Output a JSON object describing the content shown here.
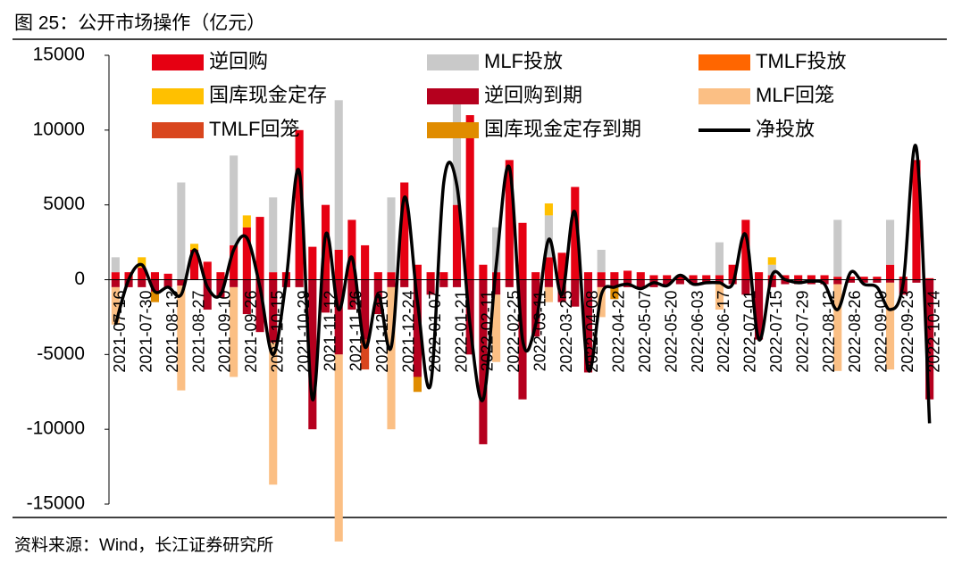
{
  "chart_data": {
    "type": "bar",
    "title": "图 25：公开市场操作（亿元）",
    "source": "资料来源：Wind，长江证券研究所",
    "categories": [
      "2021-07-16",
      null,
      "2021-07-30",
      null,
      "2021-08-13",
      null,
      "2021-08-27",
      null,
      "2021-09-10",
      null,
      "2021-09-26",
      null,
      "2021-10-15",
      null,
      "2021-10-29",
      null,
      "2021-11-12",
      null,
      "2021-11-26",
      null,
      "2021-12-10",
      null,
      "2021-12-24",
      null,
      "2022-01-07",
      null,
      "2022-01-21",
      null,
      "2022-02-11",
      null,
      "2022-02-25",
      null,
      "2022-03-11",
      null,
      "2022-03-25",
      null,
      "2022-04-08",
      null,
      "2022-04-22",
      null,
      "2022-05-07",
      null,
      "2022-05-20",
      null,
      "2022-06-03",
      null,
      "2022-06-17",
      null,
      "2022-07-01",
      null,
      "2022-07-15",
      null,
      "2022-07-29",
      null,
      "2022-08-12",
      null,
      "2022-08-26",
      null,
      "2022-09-09",
      null,
      "2022-09-23",
      null,
      "2022-10-14"
    ],
    "series": [
      {
        "name": "逆回购",
        "color": "#e60012",
        "values": [
          500,
          500,
          800,
          500,
          400,
          0,
          2000,
          1200,
          500,
          2300,
          3500,
          4200,
          500,
          500,
          10000,
          2200,
          5000,
          2000,
          4000,
          2300,
          500,
          500,
          6500,
          1000,
          500,
          500,
          5000,
          11000,
          1000,
          500,
          8000,
          3800,
          500,
          1500,
          1800,
          6200,
          500,
          500,
          500,
          600,
          500,
          300,
          300,
          300,
          300,
          300,
          300,
          1000,
          4000,
          500,
          300,
          300,
          300,
          300,
          300,
          200,
          200,
          200,
          200,
          1000,
          200,
          8000,
          100
        ]
      },
      {
        "name": "MLF投放",
        "color": "#c9c9c9",
        "values": [
          1000,
          0,
          0,
          0,
          0,
          6500,
          0,
          0,
          0,
          6000,
          0,
          0,
          5000,
          0,
          0,
          0,
          0,
          10000,
          0,
          0,
          0,
          5000,
          0,
          0,
          0,
          0,
          7000,
          0,
          0,
          3000,
          0,
          0,
          0,
          2800,
          0,
          0,
          0,
          1500,
          0,
          0,
          0,
          0,
          0,
          0,
          0,
          0,
          2200,
          0,
          0,
          0,
          700,
          0,
          0,
          0,
          0,
          3800,
          0,
          0,
          0,
          3000,
          0,
          0,
          0
        ]
      },
      {
        "name": "TMLF投放",
        "color": "#ff6600",
        "values": [
          0,
          0,
          0,
          0,
          0,
          0,
          0,
          0,
          0,
          0,
          0,
          0,
          0,
          0,
          0,
          0,
          0,
          0,
          0,
          0,
          0,
          0,
          0,
          0,
          0,
          0,
          0,
          0,
          0,
          0,
          0,
          0,
          0,
          0,
          0,
          0,
          0,
          0,
          0,
          0,
          0,
          0,
          0,
          0,
          0,
          0,
          0,
          0,
          0,
          0,
          0,
          0,
          0,
          0,
          0,
          0,
          0,
          0,
          0,
          0,
          0,
          0,
          0
        ]
      },
      {
        "name": "国库现金定存",
        "color": "#ffc000",
        "values": [
          0,
          0,
          700,
          0,
          0,
          0,
          400,
          0,
          0,
          0,
          800,
          0,
          0,
          0,
          0,
          0,
          0,
          0,
          0,
          0,
          0,
          0,
          0,
          0,
          0,
          0,
          0,
          0,
          0,
          0,
          0,
          0,
          0,
          800,
          0,
          0,
          0,
          0,
          0,
          0,
          0,
          0,
          0,
          0,
          0,
          0,
          0,
          0,
          0,
          0,
          500,
          0,
          0,
          0,
          0,
          0,
          0,
          0,
          0,
          0,
          0,
          0,
          0
        ]
      },
      {
        "name": "逆回购到期",
        "color": "#b5001e",
        "values": [
          -500,
          -500,
          -500,
          -800,
          -500,
          -400,
          0,
          -2000,
          -1200,
          -500,
          -2300,
          -3500,
          -4200,
          -500,
          -500,
          -10000,
          -2200,
          -5000,
          -2000,
          -4000,
          -2300,
          -500,
          -500,
          -6500,
          -1000,
          -500,
          -500,
          -5000,
          -11000,
          -1000,
          -500,
          -8000,
          -3800,
          -500,
          -1500,
          -1800,
          -6200,
          -500,
          -500,
          -500,
          -600,
          -500,
          -300,
          -300,
          -300,
          -300,
          -300,
          -300,
          -1000,
          -4000,
          -500,
          -300,
          -300,
          -300,
          -300,
          -300,
          -200,
          -200,
          -200,
          -200,
          -1000,
          -200,
          -8000
        ]
      },
      {
        "name": "MLF回笼",
        "color": "#fbbf84",
        "values": [
          -2500,
          0,
          0,
          0,
          0,
          -7000,
          0,
          0,
          0,
          -6000,
          0,
          0,
          -9500,
          0,
          0,
          0,
          0,
          -12500,
          0,
          0,
          0,
          -9500,
          0,
          0,
          0,
          0,
          0,
          0,
          0,
          -4500,
          0,
          0,
          0,
          -1000,
          0,
          0,
          0,
          -2000,
          0,
          0,
          0,
          0,
          0,
          0,
          0,
          0,
          -1700,
          0,
          0,
          0,
          0,
          0,
          0,
          0,
          0,
          -5800,
          0,
          0,
          0,
          -5800,
          0,
          0,
          0
        ]
      },
      {
        "name": "TMLF回笼",
        "color": "#d9461e",
        "values": [
          0,
          0,
          0,
          0,
          0,
          0,
          0,
          0,
          0,
          0,
          0,
          0,
          0,
          0,
          0,
          0,
          0,
          0,
          0,
          -2000,
          0,
          0,
          0,
          0,
          0,
          0,
          0,
          0,
          0,
          0,
          0,
          0,
          0,
          0,
          0,
          0,
          0,
          0,
          0,
          0,
          0,
          0,
          0,
          0,
          0,
          0,
          0,
          0,
          0,
          0,
          0,
          0,
          0,
          0,
          0,
          0,
          0,
          0,
          0,
          0,
          0,
          0,
          0
        ]
      },
      {
        "name": "国库现金定存到期",
        "color": "#e08c00",
        "values": [
          0,
          0,
          0,
          -700,
          0,
          0,
          0,
          0,
          0,
          0,
          0,
          0,
          0,
          0,
          0,
          0,
          0,
          0,
          0,
          0,
          0,
          0,
          0,
          -1000,
          0,
          0,
          0,
          0,
          0,
          0,
          0,
          0,
          0,
          0,
          0,
          0,
          0,
          0,
          -800,
          0,
          0,
          0,
          0,
          0,
          0,
          0,
          0,
          0,
          0,
          0,
          0,
          0,
          0,
          0,
          0,
          0,
          0,
          0,
          0,
          0,
          0,
          0,
          0
        ]
      },
      {
        "name": "净投放",
        "type": "line",
        "color": "#000000",
        "values": [
          -3000,
          0,
          1000,
          -800,
          -500,
          -1000,
          2000,
          -500,
          -1000,
          2000,
          2800,
          -500,
          -5000,
          0,
          7200,
          -8000,
          3000,
          -2000,
          1500,
          -4500,
          -1000,
          -4500,
          5500,
          -1500,
          -7000,
          6500,
          6300,
          -3000,
          -8000,
          1000,
          7500,
          -4000,
          -3000,
          2700,
          -1000,
          4500,
          -6000,
          -1000,
          -500,
          -300,
          -600,
          -200,
          -400,
          300,
          -300,
          -200,
          -200,
          -300,
          3000,
          -4000,
          300,
          0,
          -200,
          -100,
          -300,
          -2000,
          500,
          -300,
          -500,
          -2000,
          -200,
          8800,
          -9600
        ]
      }
    ],
    "ylim": [
      -15000,
      15000
    ],
    "yticks": [
      -15000,
      -10000,
      -5000,
      0,
      5000,
      10000,
      15000
    ],
    "legend": "top"
  }
}
